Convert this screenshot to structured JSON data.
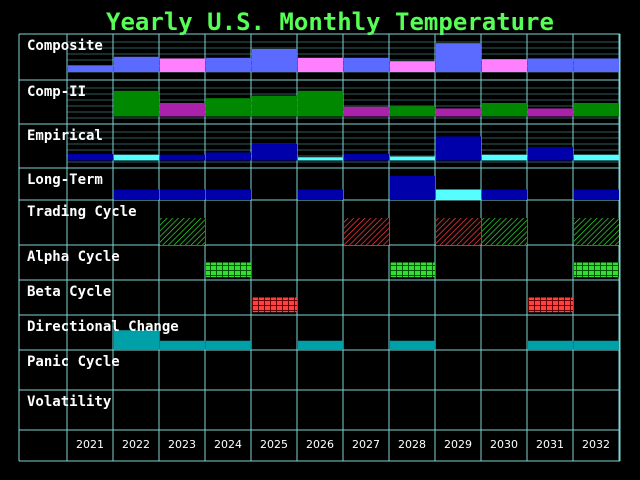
{
  "chart_data": {
    "type": "heatmap",
    "title": "Yearly U.S. Monthly Temperature",
    "years": [
      "2021",
      "2022",
      "2023",
      "2024",
      "2025",
      "2026",
      "2027",
      "2028",
      "2029",
      "2030",
      "2031",
      "2032"
    ],
    "colors": {
      "background": "#000000",
      "grid": "#7fd4d4",
      "title": "#55ff55",
      "label": "#ffffff",
      "year_label": "#ffffff",
      "blue_light": "#5b6bff",
      "pink": "#ff80ff",
      "green": "#008800",
      "magenta": "#aa22aa",
      "navy": "#0000aa",
      "cyan": "#55ffff",
      "teal": "#00a0a8",
      "red_hatch": "#ff4040",
      "green_hatch": "#33dd33"
    },
    "rows": [
      {
        "label": "Composite",
        "kind": "bar_top",
        "cells": [
          {
            "level": 0.2,
            "color": "blue_light"
          },
          {
            "level": 0.45,
            "color": "blue_light"
          },
          {
            "level": 0.4,
            "color": "pink"
          },
          {
            "level": 0.42,
            "color": "blue_light"
          },
          {
            "level": 0.68,
            "color": "blue_light"
          },
          {
            "level": 0.42,
            "color": "pink"
          },
          {
            "level": 0.42,
            "color": "blue_light"
          },
          {
            "level": 0.32,
            "color": "pink"
          },
          {
            "level": 0.85,
            "color": "blue_light"
          },
          {
            "level": 0.38,
            "color": "pink"
          },
          {
            "level": 0.4,
            "color": "blue_light"
          },
          {
            "level": 0.4,
            "color": "blue_light"
          }
        ]
      },
      {
        "label": "Comp-II",
        "kind": "bar_top",
        "cells": [
          {
            "level": 0.0,
            "color": "green"
          },
          {
            "level": 0.8,
            "color": "green"
          },
          {
            "level": 0.42,
            "color": "magenta"
          },
          {
            "level": 0.57,
            "color": "green"
          },
          {
            "level": 0.65,
            "color": "green"
          },
          {
            "level": 0.8,
            "color": "green"
          },
          {
            "level": 0.3,
            "color": "magenta"
          },
          {
            "level": 0.32,
            "color": "green"
          },
          {
            "level": 0.25,
            "color": "magenta"
          },
          {
            "level": 0.42,
            "color": "green"
          },
          {
            "level": 0.25,
            "color": "magenta"
          },
          {
            "level": 0.42,
            "color": "green"
          }
        ]
      },
      {
        "label": "Empirical",
        "kind": "bar_top",
        "cells": [
          {
            "level": 0.2,
            "color": "navy"
          },
          {
            "level": 0.18,
            "color": "cyan"
          },
          {
            "level": 0.18,
            "color": "navy"
          },
          {
            "level": 0.25,
            "color": "navy"
          },
          {
            "level": 0.52,
            "color": "navy"
          },
          {
            "level": 0.1,
            "color": "cyan"
          },
          {
            "level": 0.2,
            "color": "navy"
          },
          {
            "level": 0.12,
            "color": "cyan"
          },
          {
            "level": 0.75,
            "color": "navy"
          },
          {
            "level": 0.18,
            "color": "cyan"
          },
          {
            "level": 0.42,
            "color": "navy"
          },
          {
            "level": 0.18,
            "color": "cyan"
          }
        ]
      },
      {
        "label": "Long-Term",
        "kind": "bar_bottom",
        "cells": [
          {
            "level": 0.0,
            "color": "navy"
          },
          {
            "level": 0.35,
            "color": "navy"
          },
          {
            "level": 0.35,
            "color": "navy"
          },
          {
            "level": 0.35,
            "color": "navy"
          },
          {
            "level": 0.0,
            "color": "navy"
          },
          {
            "level": 0.35,
            "color": "navy"
          },
          {
            "level": 0.0,
            "color": "navy"
          },
          {
            "level": 0.8,
            "color": "navy"
          },
          {
            "level": 0.35,
            "color": "cyan"
          },
          {
            "level": 0.35,
            "color": "navy"
          },
          {
            "level": 0.0,
            "color": "navy"
          },
          {
            "level": 0.35,
            "color": "navy"
          }
        ]
      },
      {
        "label": "Trading Cycle",
        "kind": "hatch_bottom",
        "cells": [
          {
            "level": 0.0,
            "color": "green_hatch"
          },
          {
            "level": 0.0,
            "color": "green_hatch"
          },
          {
            "level": 0.6,
            "color": "green_hatch"
          },
          {
            "level": 0.0,
            "color": "green_hatch"
          },
          {
            "level": 0.0,
            "color": "green_hatch"
          },
          {
            "level": 0.0,
            "color": "green_hatch"
          },
          {
            "level": 0.6,
            "color": "red_hatch"
          },
          {
            "level": 0.0,
            "color": "green_hatch"
          },
          {
            "level": 0.6,
            "color": "red_hatch"
          },
          {
            "level": 0.6,
            "color": "green_hatch"
          },
          {
            "level": 0.0,
            "color": "green_hatch"
          },
          {
            "level": 0.6,
            "color": "green_hatch"
          }
        ]
      },
      {
        "label": "Alpha Cycle",
        "kind": "brick",
        "cells": [
          {
            "on": false,
            "color": "green_hatch"
          },
          {
            "on": false,
            "color": "green_hatch"
          },
          {
            "on": false,
            "color": "green_hatch"
          },
          {
            "on": true,
            "color": "green_hatch"
          },
          {
            "on": false,
            "color": "green_hatch"
          },
          {
            "on": false,
            "color": "green_hatch"
          },
          {
            "on": false,
            "color": "green_hatch"
          },
          {
            "on": true,
            "color": "green_hatch"
          },
          {
            "on": false,
            "color": "green_hatch"
          },
          {
            "on": false,
            "color": "green_hatch"
          },
          {
            "on": false,
            "color": "green_hatch"
          },
          {
            "on": true,
            "color": "green_hatch"
          }
        ]
      },
      {
        "label": "Beta Cycle",
        "kind": "brick",
        "cells": [
          {
            "on": false,
            "color": "red_hatch"
          },
          {
            "on": false,
            "color": "red_hatch"
          },
          {
            "on": false,
            "color": "red_hatch"
          },
          {
            "on": false,
            "color": "red_hatch"
          },
          {
            "on": true,
            "color": "red_hatch"
          },
          {
            "on": false,
            "color": "red_hatch"
          },
          {
            "on": false,
            "color": "red_hatch"
          },
          {
            "on": false,
            "color": "red_hatch"
          },
          {
            "on": false,
            "color": "red_hatch"
          },
          {
            "on": false,
            "color": "red_hatch"
          },
          {
            "on": true,
            "color": "red_hatch"
          },
          {
            "on": false,
            "color": "red_hatch"
          }
        ]
      },
      {
        "label": "Directional Change",
        "kind": "bar_bottom",
        "cells": [
          {
            "level": 0.0,
            "color": "teal"
          },
          {
            "level": 0.6,
            "color": "teal"
          },
          {
            "level": 0.28,
            "color": "teal"
          },
          {
            "level": 0.28,
            "color": "teal"
          },
          {
            "level": 0.0,
            "color": "teal"
          },
          {
            "level": 0.28,
            "color": "teal"
          },
          {
            "level": 0.0,
            "color": "teal"
          },
          {
            "level": 0.28,
            "color": "teal"
          },
          {
            "level": 0.0,
            "color": "teal"
          },
          {
            "level": 0.0,
            "color": "teal"
          },
          {
            "level": 0.28,
            "color": "teal"
          },
          {
            "level": 0.28,
            "color": "teal"
          }
        ]
      },
      {
        "label": "Panic Cycle",
        "kind": "bar_bottom",
        "cells": []
      },
      {
        "label": "Volatility",
        "kind": "bar_bottom",
        "cells": []
      }
    ]
  }
}
